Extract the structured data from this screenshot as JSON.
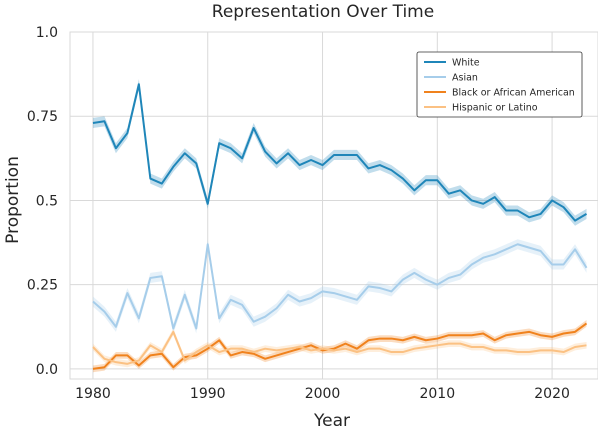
{
  "chart_data": {
    "type": "line",
    "title": "Representation Over Time",
    "xlabel": "Year",
    "ylabel": "Proportion",
    "xlim": [
      1978,
      2024
    ],
    "ylim": [
      -0.03,
      1.0
    ],
    "x_ticks": [
      "1980",
      "1990",
      "2000",
      "2010",
      "2020"
    ],
    "y_ticks": [
      "0.0",
      "0.25",
      "0.5",
      "0.75",
      "1.0"
    ],
    "grid": true,
    "legend_position": "top-right",
    "x": [
      1980,
      1981,
      1982,
      1983,
      1984,
      1985,
      1986,
      1987,
      1988,
      1989,
      1990,
      1991,
      1992,
      1993,
      1994,
      1995,
      1996,
      1997,
      1998,
      1999,
      2000,
      2001,
      2002,
      2003,
      2004,
      2005,
      2006,
      2007,
      2008,
      2009,
      2010,
      2011,
      2012,
      2013,
      2014,
      2015,
      2016,
      2017,
      2018,
      2019,
      2020,
      2021,
      2022,
      2023
    ],
    "series": [
      {
        "name": "White",
        "color": "#1f86b9",
        "values": [
          0.73,
          0.735,
          0.655,
          0.7,
          0.845,
          0.565,
          0.55,
          0.6,
          0.64,
          0.61,
          0.49,
          0.67,
          0.655,
          0.625,
          0.715,
          0.645,
          0.61,
          0.64,
          0.605,
          0.62,
          0.605,
          0.635,
          0.635,
          0.635,
          0.595,
          0.605,
          0.59,
          0.565,
          0.53,
          0.56,
          0.56,
          0.52,
          0.53,
          0.5,
          0.49,
          0.51,
          0.47,
          0.47,
          0.45,
          0.46,
          0.5,
          0.48,
          0.44,
          0.46
        ],
        "band": 0.015
      },
      {
        "name": "Asian",
        "color": "#a6cdea",
        "values": [
          0.2,
          0.17,
          0.125,
          0.225,
          0.15,
          0.27,
          0.275,
          0.12,
          0.22,
          0.12,
          0.37,
          0.15,
          0.205,
          0.19,
          0.14,
          0.155,
          0.18,
          0.22,
          0.2,
          0.21,
          0.23,
          0.225,
          0.215,
          0.205,
          0.245,
          0.24,
          0.23,
          0.265,
          0.285,
          0.265,
          0.25,
          0.27,
          0.28,
          0.31,
          0.33,
          0.34,
          0.355,
          0.37,
          0.36,
          0.35,
          0.31,
          0.31,
          0.355,
          0.3
        ],
        "band": 0.015
      },
      {
        "name": "Black or African American",
        "color": "#f0821d",
        "values": [
          0.0,
          0.005,
          0.04,
          0.04,
          0.01,
          0.04,
          0.045,
          0.005,
          0.035,
          0.04,
          0.06,
          0.085,
          0.04,
          0.05,
          0.045,
          0.03,
          0.04,
          0.05,
          0.06,
          0.07,
          0.055,
          0.06,
          0.075,
          0.06,
          0.085,
          0.09,
          0.09,
          0.085,
          0.095,
          0.085,
          0.09,
          0.1,
          0.1,
          0.1,
          0.105,
          0.085,
          0.1,
          0.105,
          0.11,
          0.1,
          0.095,
          0.105,
          0.11,
          0.135
        ],
        "band": 0.01
      },
      {
        "name": "Hispanic or Latino",
        "color": "#fbc183",
        "values": [
          0.065,
          0.03,
          0.02,
          0.015,
          0.025,
          0.07,
          0.05,
          0.11,
          0.025,
          0.05,
          0.07,
          0.05,
          0.06,
          0.06,
          0.05,
          0.06,
          0.055,
          0.06,
          0.065,
          0.055,
          0.06,
          0.055,
          0.06,
          0.05,
          0.06,
          0.06,
          0.05,
          0.05,
          0.06,
          0.065,
          0.07,
          0.075,
          0.075,
          0.065,
          0.065,
          0.055,
          0.055,
          0.05,
          0.05,
          0.055,
          0.055,
          0.05,
          0.065,
          0.07
        ],
        "band": 0.01
      }
    ]
  }
}
